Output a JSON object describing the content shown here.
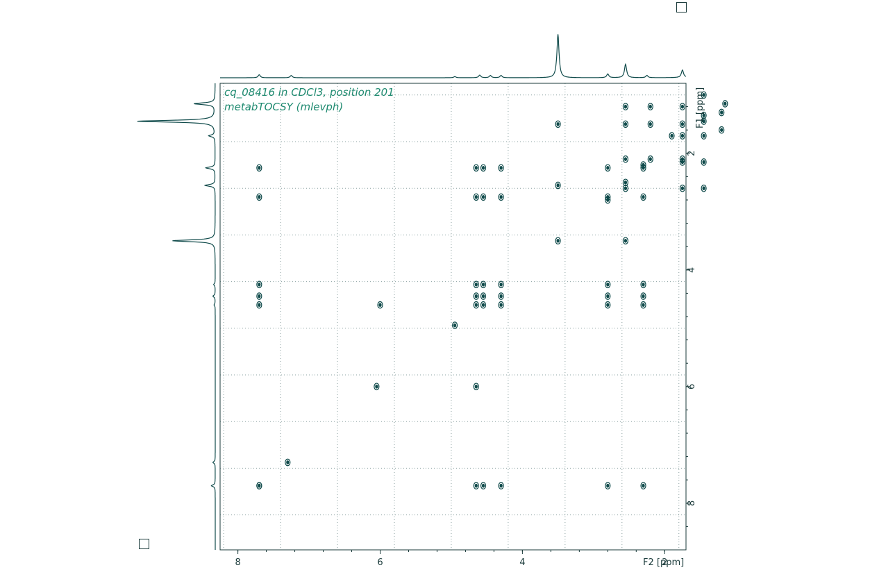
{
  "title_lines": [
    "cq_08416 in CDCl3, position 201",
    "metabTOCSY (mlevph)"
  ],
  "colors": {
    "contour": "#0f4a4a",
    "title": "#1f8a70",
    "grid": "#8aa0a0",
    "axis": "#1a3a3a"
  },
  "chart_data": {
    "type": "heatmap",
    "subtype": "2D NMR TOCSY contour plot with 1D projections",
    "xlabel": "F2 [ppm]",
    "ylabel": "F1 [ppm]",
    "x_ticks": [
      "8",
      "6",
      "4",
      "2"
    ],
    "y_ticks": [
      "2",
      "4",
      "6",
      "8"
    ],
    "xlim": [
      8.25,
      1.7
    ],
    "ylim": [
      0.8,
      8.8
    ],
    "x_axis_reversed": true,
    "y_axis_reversed": true,
    "grid": true,
    "diagonal_peaks": [
      [
        1.15,
        1.15
      ],
      [
        1.45,
        1.35
      ],
      [
        1.45,
        1.45
      ],
      [
        1.45,
        1.7
      ],
      [
        1.75,
        1.7
      ],
      [
        1.2,
        1.3
      ],
      [
        1.2,
        1.6
      ],
      [
        1.45,
        1.0
      ],
      [
        1.75,
        2.1
      ],
      [
        2.55,
        2.1
      ],
      [
        2.2,
        2.1
      ],
      [
        2.55,
        2.5
      ],
      [
        2.3,
        2.2
      ],
      [
        2.8,
        2.8
      ],
      [
        3.5,
        3.5
      ],
      [
        4.95,
        4.95
      ],
      [
        7.3,
        7.3
      ],
      [
        7.7,
        7.7
      ],
      [
        6.05,
        6.0
      ],
      [
        4.65,
        6.0
      ],
      [
        1.9,
        1.7
      ]
    ],
    "cross_peaks": [
      [
        2.55,
        1.2
      ],
      [
        2.55,
        1.5
      ],
      [
        2.2,
        1.2
      ],
      [
        2.2,
        1.5
      ],
      [
        1.75,
        1.2
      ],
      [
        1.75,
        1.5
      ],
      [
        7.7,
        2.25
      ],
      [
        7.7,
        2.75
      ],
      [
        4.65,
        2.25
      ],
      [
        4.55,
        2.25
      ],
      [
        4.3,
        2.25
      ],
      [
        4.65,
        2.75
      ],
      [
        4.55,
        2.75
      ],
      [
        4.3,
        2.75
      ],
      [
        2.8,
        2.25
      ],
      [
        2.3,
        2.25
      ],
      [
        2.8,
        2.75
      ],
      [
        2.3,
        2.75
      ],
      [
        2.55,
        2.6
      ],
      [
        1.75,
        2.15
      ],
      [
        1.45,
        2.15
      ],
      [
        1.75,
        2.6
      ],
      [
        1.45,
        2.6
      ],
      [
        3.5,
        1.5
      ],
      [
        3.5,
        2.55
      ],
      [
        2.55,
        3.5
      ],
      [
        7.7,
        4.25
      ],
      [
        7.7,
        4.45
      ],
      [
        7.7,
        4.6
      ],
      [
        4.65,
        4.25
      ],
      [
        4.55,
        4.25
      ],
      [
        4.3,
        4.25
      ],
      [
        4.65,
        4.45
      ],
      [
        4.55,
        4.45
      ],
      [
        4.3,
        4.45
      ],
      [
        4.65,
        4.6
      ],
      [
        4.55,
        4.6
      ],
      [
        4.3,
        4.6
      ],
      [
        2.8,
        4.25
      ],
      [
        2.8,
        4.45
      ],
      [
        2.8,
        4.6
      ],
      [
        2.3,
        4.25
      ],
      [
        2.3,
        4.45
      ],
      [
        2.3,
        4.6
      ],
      [
        6.0,
        4.6
      ],
      [
        7.7,
        7.7
      ],
      [
        4.65,
        7.7
      ],
      [
        4.55,
        7.7
      ],
      [
        4.3,
        7.7
      ],
      [
        2.8,
        7.7
      ],
      [
        2.3,
        7.7
      ]
    ],
    "f2_projection_peaks": [
      {
        "ppm": 7.7,
        "h": 0.04
      },
      {
        "ppm": 7.25,
        "h": 0.03
      },
      {
        "ppm": 4.95,
        "h": 0.015
      },
      {
        "ppm": 4.6,
        "h": 0.035
      },
      {
        "ppm": 4.45,
        "h": 0.03
      },
      {
        "ppm": 4.3,
        "h": 0.03
      },
      {
        "ppm": 3.5,
        "h": 0.58
      },
      {
        "ppm": 2.8,
        "h": 0.05
      },
      {
        "ppm": 2.55,
        "h": 0.18
      },
      {
        "ppm": 2.25,
        "h": 0.03
      },
      {
        "ppm": 1.75,
        "h": 0.1
      },
      {
        "ppm": 1.45,
        "h": 1.0
      },
      {
        "ppm": 1.15,
        "h": 0.32
      }
    ],
    "f1_projection_peaks": [
      {
        "ppm": 1.15,
        "h": 0.27
      },
      {
        "ppm": 1.45,
        "h": 1.0
      },
      {
        "ppm": 1.7,
        "h": 0.08
      },
      {
        "ppm": 2.25,
        "h": 0.12
      },
      {
        "ppm": 2.55,
        "h": 0.13
      },
      {
        "ppm": 3.5,
        "h": 0.55
      },
      {
        "ppm": 4.25,
        "h": 0.02
      },
      {
        "ppm": 4.45,
        "h": 0.03
      },
      {
        "ppm": 4.6,
        "h": 0.015
      },
      {
        "ppm": 7.3,
        "h": 0.03
      },
      {
        "ppm": 7.7,
        "h": 0.05
      }
    ]
  }
}
